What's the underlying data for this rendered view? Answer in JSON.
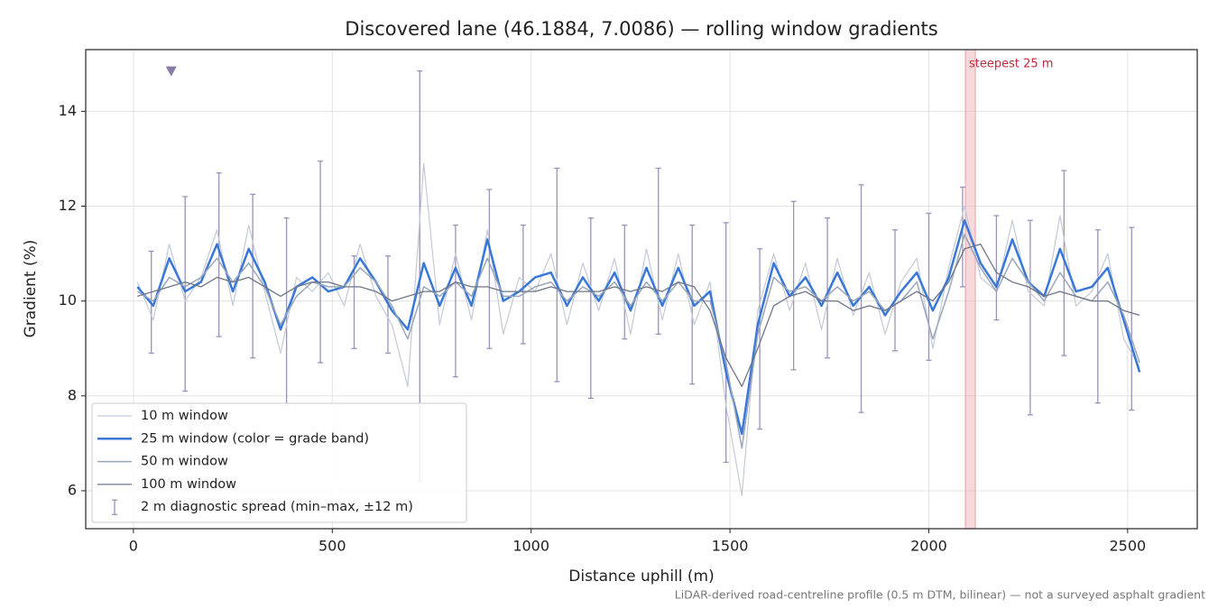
{
  "chart_data": {
    "type": "line",
    "title": "Discovered lane (46.1884, 7.0086) — rolling window gradients",
    "x_label": "Distance uphill (m)",
    "y_label": "Gradient (%)",
    "footnote": "LiDAR-derived road-centreline profile (0.5 m DTM, bilinear) — not a surveyed asphalt gradient",
    "xlim": [
      -120,
      2675
    ],
    "ylim": [
      5.2,
      15.3
    ],
    "xticks": [
      0,
      500,
      1000,
      1500,
      2000,
      2500
    ],
    "yticks": [
      6,
      8,
      10,
      12,
      14
    ],
    "grid": true,
    "legend": "lower left",
    "x": [
      10,
      50,
      90,
      130,
      170,
      210,
      250,
      290,
      330,
      370,
      410,
      450,
      490,
      530,
      570,
      610,
      650,
      690,
      730,
      770,
      810,
      850,
      890,
      930,
      970,
      1010,
      1050,
      1090,
      1130,
      1170,
      1210,
      1250,
      1290,
      1330,
      1370,
      1410,
      1450,
      1490,
      1530,
      1570,
      1610,
      1650,
      1690,
      1730,
      1770,
      1810,
      1850,
      1890,
      1930,
      1970,
      2010,
      2050,
      2090,
      2130,
      2170,
      2210,
      2250,
      2290,
      2330,
      2370,
      2410,
      2450,
      2490,
      2530
    ],
    "series": [
      {
        "name": "10 m window",
        "color": "#c3cad6",
        "width": 1.2,
        "values": [
          10.4,
          9.6,
          11.2,
          10.0,
          10.5,
          11.5,
          9.9,
          11.6,
          10.2,
          8.9,
          10.5,
          10.2,
          10.6,
          9.9,
          11.2,
          10.1,
          9.5,
          8.2,
          12.9,
          9.5,
          11.0,
          9.6,
          11.5,
          9.3,
          10.5,
          10.2,
          11.0,
          9.5,
          10.8,
          9.8,
          10.9,
          9.3,
          11.1,
          9.6,
          11.0,
          9.5,
          10.4,
          7.8,
          5.9,
          9.8,
          11.0,
          9.8,
          10.8,
          9.4,
          10.9,
          9.7,
          10.6,
          9.3,
          10.4,
          10.9,
          9.0,
          10.7,
          12.0,
          10.5,
          10.2,
          11.7,
          10.2,
          9.9,
          11.8,
          9.9,
          10.2,
          11.0,
          9.2,
          8.6
        ]
      },
      {
        "name": "25 m window (color = grade band)",
        "color": "#3a78d8",
        "width": 2.5,
        "values": [
          10.3,
          9.9,
          10.9,
          10.2,
          10.4,
          11.2,
          10.2,
          11.1,
          10.4,
          9.4,
          10.3,
          10.5,
          10.2,
          10.3,
          10.9,
          10.4,
          9.8,
          9.4,
          10.8,
          9.9,
          10.7,
          9.9,
          11.3,
          10.0,
          10.2,
          10.5,
          10.6,
          9.9,
          10.5,
          10.0,
          10.6,
          9.8,
          10.7,
          9.9,
          10.7,
          9.9,
          10.2,
          8.5,
          7.2,
          9.5,
          10.8,
          10.1,
          10.5,
          9.9,
          10.6,
          9.9,
          10.3,
          9.7,
          10.2,
          10.6,
          9.8,
          10.5,
          11.7,
          10.8,
          10.3,
          11.3,
          10.4,
          10.1,
          11.1,
          10.2,
          10.3,
          10.7,
          9.6,
          8.5
        ]
      },
      {
        "name": "50 m window",
        "color": "#9aa7b8",
        "width": 1.5,
        "values": [
          10.2,
          10.0,
          10.5,
          10.3,
          10.5,
          10.9,
          10.4,
          10.8,
          10.3,
          9.5,
          10.1,
          10.4,
          10.3,
          10.3,
          10.7,
          10.4,
          9.9,
          9.2,
          10.3,
          10.1,
          10.4,
          10.1,
          10.9,
          10.1,
          10.1,
          10.3,
          10.4,
          10.0,
          10.3,
          10.1,
          10.4,
          9.9,
          10.4,
          10.0,
          10.4,
          10.0,
          10.0,
          8.7,
          6.9,
          9.3,
          10.5,
          10.2,
          10.3,
          10.0,
          10.3,
          10.0,
          10.2,
          9.8,
          10.0,
          10.4,
          9.2,
          10.2,
          11.4,
          10.7,
          10.2,
          10.9,
          10.4,
          10.0,
          10.6,
          10.1,
          10.0,
          10.4,
          9.7,
          8.7
        ]
      },
      {
        "name": "100 m window",
        "color": "#6d7688",
        "width": 1.3,
        "values": [
          10.1,
          10.2,
          10.3,
          10.4,
          10.3,
          10.5,
          10.4,
          10.5,
          10.3,
          10.1,
          10.3,
          10.4,
          10.4,
          10.3,
          10.3,
          10.2,
          10.0,
          10.1,
          10.2,
          10.2,
          10.4,
          10.3,
          10.3,
          10.2,
          10.2,
          10.2,
          10.3,
          10.2,
          10.2,
          10.2,
          10.3,
          10.2,
          10.3,
          10.2,
          10.4,
          10.3,
          9.8,
          8.8,
          8.2,
          9.0,
          9.9,
          10.1,
          10.2,
          10.0,
          10.0,
          9.8,
          9.9,
          9.8,
          10.0,
          10.2,
          10.0,
          10.4,
          11.1,
          11.2,
          10.6,
          10.4,
          10.3,
          10.1,
          10.2,
          10.1,
          10.0,
          10.0,
          9.8,
          9.7
        ]
      }
    ],
    "spread": {
      "name": "2 m diagnostic spread (min–max, ±12 m)",
      "color": "#9a92b8",
      "x": [
        45,
        130,
        215,
        300,
        385,
        470,
        555,
        640,
        720,
        810,
        895,
        980,
        1065,
        1150,
        1235,
        1320,
        1405,
        1490,
        1575,
        1660,
        1745,
        1830,
        1915,
        2000,
        2085,
        2170,
        2255,
        2340,
        2425,
        2510
      ],
      "min": [
        8.9,
        8.1,
        9.25,
        8.8,
        7.8,
        8.7,
        9.0,
        8.9,
        6.2,
        8.4,
        9.0,
        9.1,
        8.3,
        7.95,
        9.2,
        9.3,
        8.25,
        6.6,
        7.3,
        8.55,
        8.8,
        7.65,
        8.95,
        8.75,
        10.3,
        9.6,
        7.6,
        8.85,
        7.85,
        7.7
      ],
      "max": [
        11.05,
        12.2,
        12.7,
        12.25,
        11.75,
        12.95,
        10.95,
        10.95,
        14.85,
        11.6,
        12.35,
        11.6,
        12.8,
        11.75,
        11.6,
        12.8,
        11.6,
        11.65,
        11.1,
        12.1,
        11.75,
        12.45,
        11.5,
        11.85,
        12.4,
        11.8,
        11.7,
        12.75,
        11.5,
        11.55
      ]
    },
    "marker": {
      "x": 95,
      "y": 14.85,
      "color": "#8a7aa8"
    },
    "highlight": {
      "x0": 2092,
      "x1": 2117,
      "label": "steepest 25 m",
      "color": "#e8a0a4",
      "label_color": "#c0283a"
    }
  }
}
